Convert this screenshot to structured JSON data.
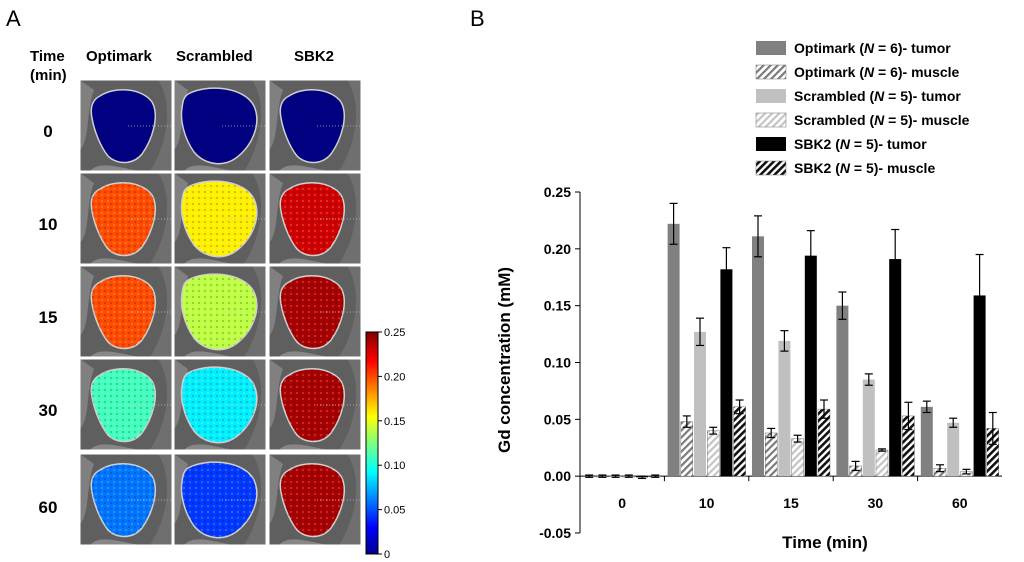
{
  "panel_a": {
    "letter": "A",
    "time_header_line1": "Time",
    "time_header_line2": "(min)",
    "columns": [
      "Optimark",
      "Scrambled",
      "SBK2"
    ],
    "rows": [
      "0",
      "10",
      "15",
      "30",
      "60"
    ],
    "colorbar": {
      "min": 0,
      "max": 0.25,
      "ticks": [
        "0.25",
        "0.20",
        "0.15",
        "0.10",
        "0.05",
        "0"
      ]
    },
    "levels": [
      [
        0.0,
        0.0,
        0.0
      ],
      [
        0.2,
        0.16,
        0.23
      ],
      [
        0.2,
        0.14,
        0.24
      ],
      [
        0.11,
        0.09,
        0.24
      ],
      [
        0.06,
        0.045,
        0.24
      ]
    ]
  },
  "panel_b": {
    "letter": "B"
  },
  "chart_data": {
    "type": "bar",
    "categories": [
      "0",
      "10",
      "15",
      "30",
      "60"
    ],
    "xlabel": "Time (min)",
    "ylabel": "Gd concentration (mM)",
    "ylim": [
      -0.05,
      0.25
    ],
    "yticks": [
      "0.25",
      "0.20",
      "0.15",
      "0.10",
      "0.05",
      "0.00",
      "-0.05"
    ],
    "legend_position": "top-right",
    "series": [
      {
        "name_prefix": "Optimark (",
        "n_label": "N",
        "name_suffix": " = 6)- tumor",
        "style": "solid",
        "color": "#808080",
        "values": [
          0.0,
          0.222,
          0.211,
          0.15,
          0.061
        ],
        "errors": [
          0.001,
          0.018,
          0.018,
          0.012,
          0.005
        ]
      },
      {
        "name_prefix": "Optimark (",
        "n_label": "N",
        "name_suffix": " = 6)- muscle",
        "style": "hatch",
        "color": "#808080",
        "values": [
          0.0,
          0.048,
          0.038,
          0.009,
          0.007
        ],
        "errors": [
          0.001,
          0.005,
          0.004,
          0.004,
          0.003
        ]
      },
      {
        "name_prefix": "Scrambled (",
        "n_label": "N",
        "name_suffix": " = 5)- tumor",
        "style": "solid",
        "color": "#c0c0c0",
        "values": [
          0.0,
          0.127,
          0.119,
          0.085,
          0.047
        ],
        "errors": [
          0.001,
          0.012,
          0.009,
          0.005,
          0.004
        ]
      },
      {
        "name_prefix": "Scrambled (",
        "n_label": "N",
        "name_suffix": " = 5)- muscle",
        "style": "hatch-light",
        "color": "#c0c0c0",
        "values": [
          0.0,
          0.04,
          0.033,
          0.023,
          0.004
        ],
        "errors": [
          0.001,
          0.003,
          0.003,
          0.001,
          0.002
        ]
      },
      {
        "name_prefix": "SBK2 (",
        "n_label": "N",
        "name_suffix": " = 5)- tumor",
        "style": "solid",
        "color": "#000000",
        "values": [
          -0.001,
          0.182,
          0.194,
          0.191,
          0.159
        ],
        "errors": [
          0.001,
          0.019,
          0.022,
          0.026,
          0.036
        ]
      },
      {
        "name_prefix": "SBK2 (",
        "n_label": "N",
        "name_suffix": " = 5)- muscle",
        "style": "hatch-dark",
        "color": "#000000",
        "values": [
          0.0,
          0.061,
          0.059,
          0.053,
          0.042
        ],
        "errors": [
          0.001,
          0.006,
          0.008,
          0.012,
          0.014
        ]
      }
    ]
  }
}
